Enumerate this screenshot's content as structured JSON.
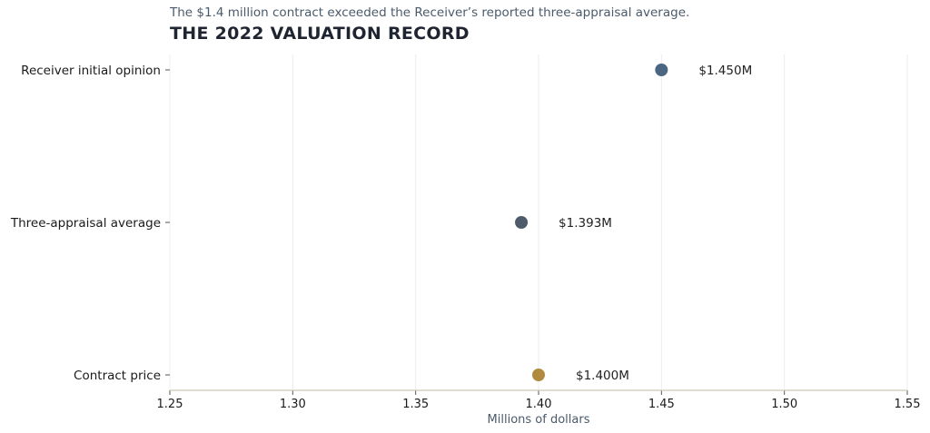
{
  "chart_data": {
    "type": "scatter",
    "title": "THE 2022 VALUATION RECORD",
    "subtitle": "The $1.4 million contract exceeded the Receiver’s reported three-appraisal average.",
    "xlabel": "Millions of dollars",
    "ylabel": "",
    "xlim": [
      1.25,
      1.55
    ],
    "xticks": [
      1.25,
      1.3,
      1.35,
      1.4,
      1.45,
      1.5,
      1.55
    ],
    "xtick_labels": [
      "1.25",
      "1.30",
      "1.35",
      "1.40",
      "1.45",
      "1.50",
      "1.55"
    ],
    "grid": "vertical",
    "points": [
      {
        "category": "Receiver initial opinion",
        "value": 1.45,
        "label": "$1.450M",
        "color": "#4a6680"
      },
      {
        "category": "Three-appraisal average",
        "value": 1.393,
        "label": "$1.393M",
        "color": "#4d5b6b"
      },
      {
        "category": "Contract price",
        "value": 1.4,
        "label": "$1.400M",
        "color": "#b08a3e"
      }
    ]
  }
}
